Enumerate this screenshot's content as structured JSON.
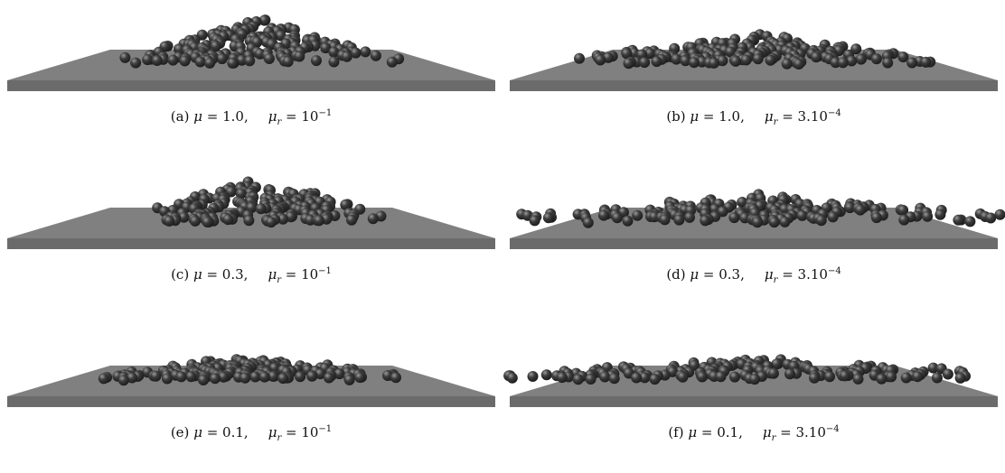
{
  "panels": [
    {
      "id": "a",
      "label": "(a)",
      "mu": "1.0",
      "mu_r_base": "10",
      "mu_r_exp": "−1",
      "mu_r_coef": "",
      "spread": "narrow-tall"
    },
    {
      "id": "b",
      "label": "(b)",
      "mu": "1.0",
      "mu_r_base": "10",
      "mu_r_exp": "−4",
      "mu_r_coef": "3.",
      "spread": "wide"
    },
    {
      "id": "c",
      "label": "(c)",
      "mu": "0.3",
      "mu_r_base": "10",
      "mu_r_exp": "−1",
      "mu_r_coef": "",
      "spread": "narrow-mid"
    },
    {
      "id": "d",
      "label": "(d)",
      "mu": "0.3",
      "mu_r_base": "10",
      "mu_r_exp": "−4",
      "mu_r_coef": "3.",
      "spread": "very-wide"
    },
    {
      "id": "e",
      "label": "(e)",
      "mu": "0.1",
      "mu_r_base": "10",
      "mu_r_exp": "−1",
      "mu_r_coef": "",
      "spread": "flat"
    },
    {
      "id": "f",
      "label": "(f)",
      "mu": "0.1",
      "mu_r_base": "10",
      "mu_r_exp": "−4",
      "mu_r_coef": "3.",
      "spread": "widest"
    }
  ],
  "symbols": {
    "mu": "μ",
    "eq": "=",
    "r": "r"
  },
  "colors": {
    "plate_top": "#808080",
    "plate_front": "#6b6b6b",
    "sphere": "#3c3c3c"
  }
}
